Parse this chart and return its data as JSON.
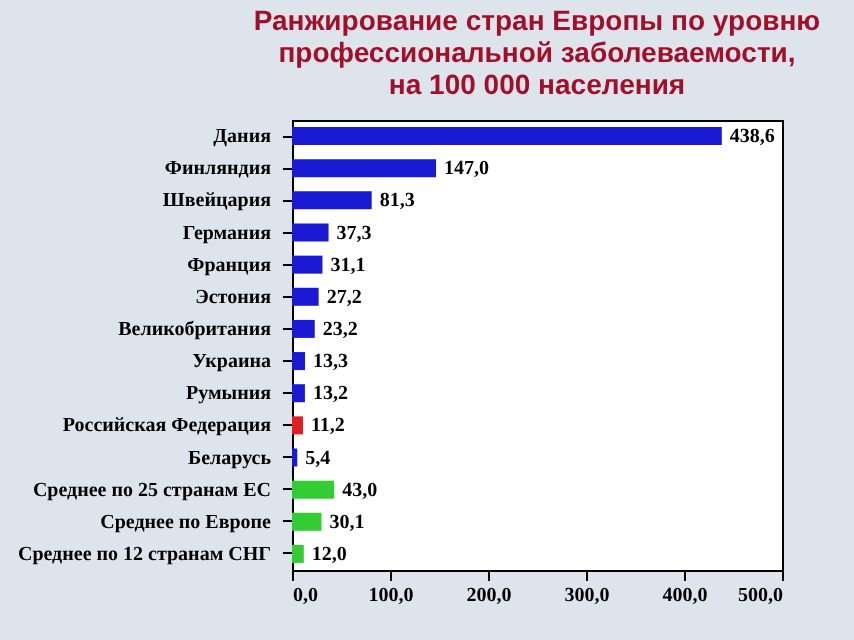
{
  "chart_data": {
    "type": "bar",
    "orientation": "horizontal",
    "title": "Ранжирование стран Европы по уровню\nпрофессиональной заболеваемости,\nна 100 000 населения",
    "categories": [
      "Дания",
      "Финляндия",
      "Швейцария",
      "Германия",
      "Франция",
      "Эстония",
      "Великобритания",
      "Украина",
      "Румыния",
      "Российская Федерация",
      "Беларусь",
      "Среднее по 25 странам ЕС",
      "Среднее по Европе",
      "Среднее по 12 странам СНГ"
    ],
    "values": [
      438.6,
      147.0,
      81.3,
      37.3,
      31.1,
      27.2,
      23.2,
      13.3,
      13.2,
      11.2,
      5.4,
      43.0,
      30.1,
      12.0
    ],
    "value_labels": [
      "438,6",
      "147,0",
      "81,3",
      "37,3",
      "31,1",
      "27,2",
      "23,2",
      "13,3",
      "13,2",
      "11,2",
      "5,4",
      "43,0",
      "30,1",
      "12,0"
    ],
    "colors": [
      "#1a1ad2",
      "#1a1ad2",
      "#1a1ad2",
      "#1a1ad2",
      "#1a1ad2",
      "#1a1ad2",
      "#1a1ad2",
      "#1a1ad2",
      "#1a1ad2",
      "#e02020",
      "#1a1ad2",
      "#33cc33",
      "#33cc33",
      "#33cc33"
    ],
    "xlim": [
      0,
      500
    ],
    "xticks": [
      {
        "value": 0,
        "label": "0,0"
      },
      {
        "value": 100,
        "label": "100,0"
      },
      {
        "value": 200,
        "label": "200,0"
      },
      {
        "value": 300,
        "label": "300,0"
      },
      {
        "value": 400,
        "label": "400,0"
      },
      {
        "value": 500,
        "label": "500,0"
      }
    ]
  }
}
